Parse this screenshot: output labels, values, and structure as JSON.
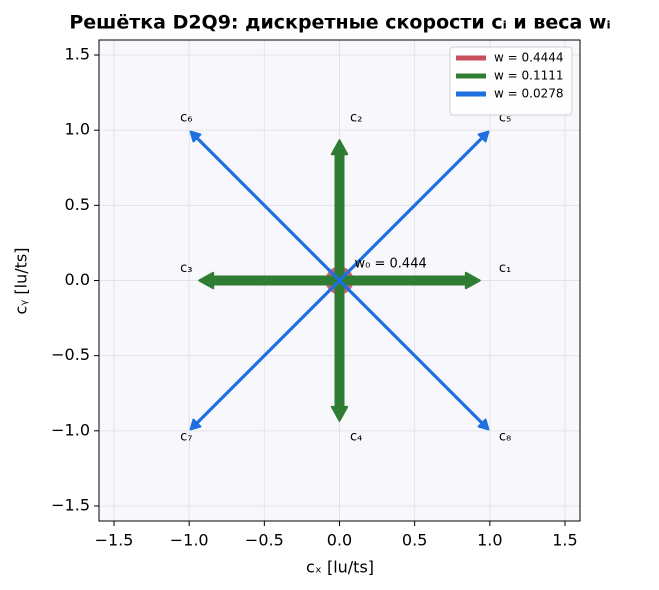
{
  "chart_data": {
    "type": "vector",
    "title": "Решётка D2Q9: дискретные скорости cᵢ и веса wᵢ",
    "xlabel": "cₓ [lu/ts]",
    "ylabel": "cᵧ [lu/ts]",
    "xlim": [
      -1.6,
      1.6
    ],
    "ylim": [
      -1.6,
      1.6
    ],
    "xticks": [
      {
        "value": -1.5,
        "label": "−1.5"
      },
      {
        "value": -1,
        "label": "−1.0"
      },
      {
        "value": -0.5,
        "label": "−0.5"
      },
      {
        "value": 0,
        "label": "0.0"
      },
      0.5,
      {
        "value": 1,
        "label": "1.0"
      },
      1.5
    ],
    "yticks": [
      {
        "value": -1.5,
        "label": "−1.5"
      },
      {
        "value": -1,
        "label": "−1.0"
      },
      {
        "value": -0.5,
        "label": "−0.5"
      },
      {
        "value": 0,
        "label": "0.0"
      },
      0.5,
      {
        "value": 1,
        "label": "1.0"
      },
      1.5
    ],
    "grid": true,
    "legend": "upper right",
    "annotation": "w₀ = 0.444",
    "series": [
      {
        "name": "w = 0.4444",
        "color": "#c94f5d",
        "vectors": [
          {
            "dx": 0,
            "dy": 0
          }
        ]
      },
      {
        "name": "w = 0.1111",
        "color": "#2e7d32",
        "vectors": [
          {
            "label": "c₁",
            "dx": 1,
            "dy": 0
          },
          {
            "label": "c₂",
            "dx": 0,
            "dy": 1
          },
          {
            "label": "c₃",
            "dx": -1,
            "dy": 0
          },
          {
            "label": "c₄",
            "dx": 0,
            "dy": -1
          }
        ]
      },
      {
        "name": "w = 0.0278",
        "color": "#1e6fe0",
        "vectors": [
          {
            "label": "c₅",
            "dx": 1,
            "dy": 1
          },
          {
            "label": "c₆",
            "dx": -1,
            "dy": 1
          },
          {
            "label": "c₇",
            "dx": -1,
            "dy": -1
          },
          {
            "label": "c₈",
            "dx": 1,
            "dy": -1
          }
        ]
      }
    ]
  }
}
